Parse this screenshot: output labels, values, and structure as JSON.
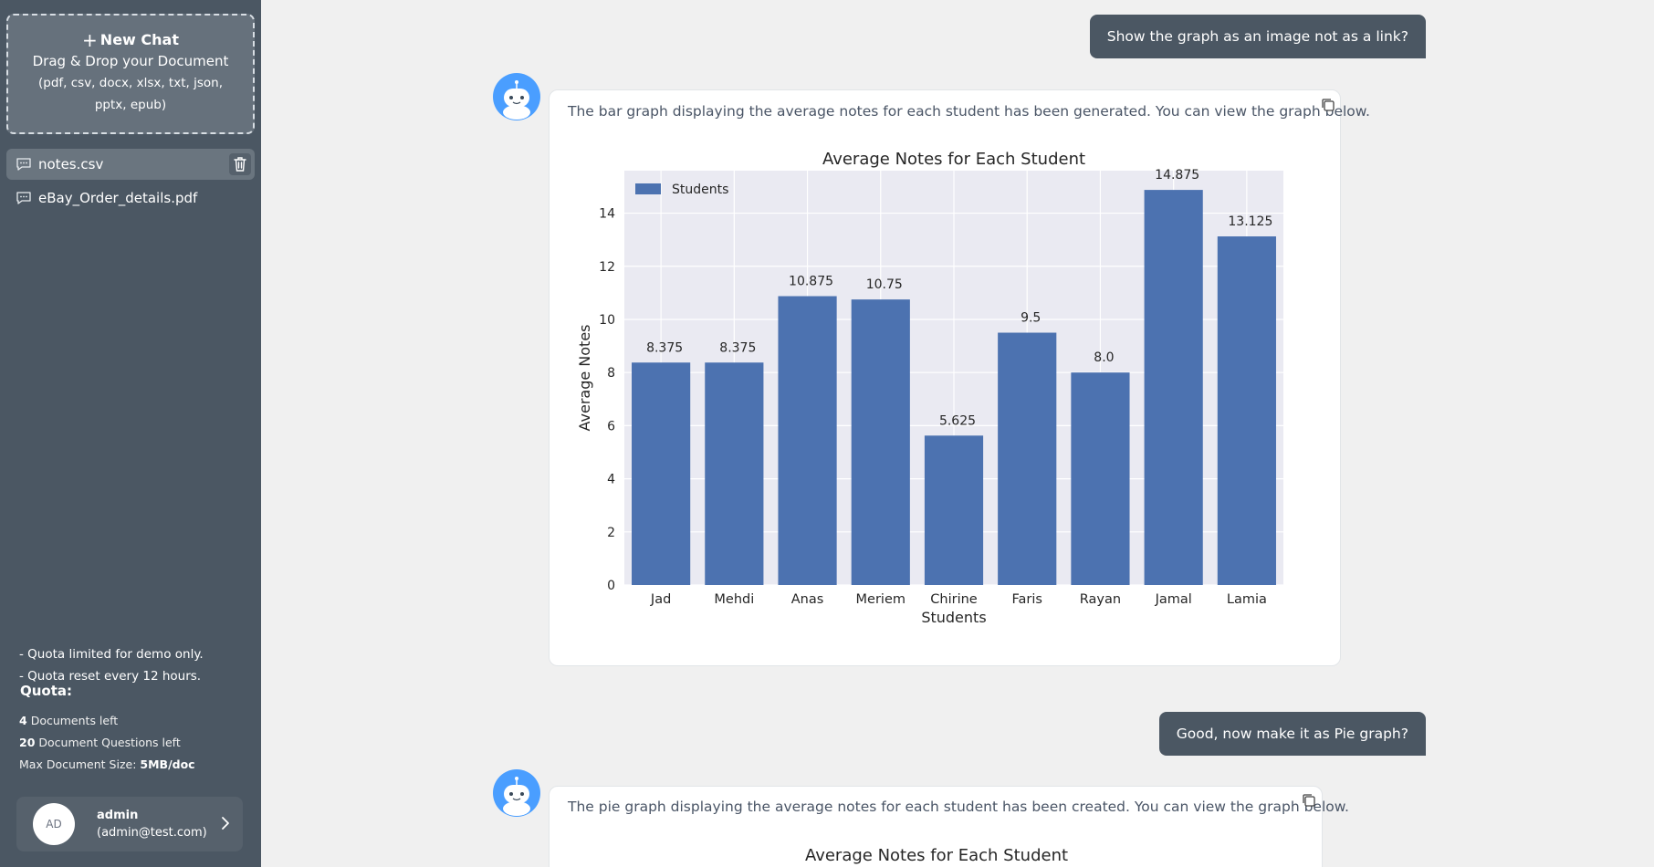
{
  "sidebar": {
    "new_chat_label": "New Chat",
    "drag_drop": "Drag & Drop your Document",
    "file_types": "(pdf, csv, docx, xlsx, txt, json, pptx, epub)",
    "documents": [
      {
        "name": "notes.csv",
        "active": true
      },
      {
        "name": "eBay_Order_details.pdf",
        "active": false
      }
    ],
    "quota_note_1": "- Quota limited for demo only.",
    "quota_note_2": "- Quota reset every 12 hours.",
    "quota_title": "Quota:",
    "documents_left_count": "4",
    "documents_left_label": "Documents left",
    "questions_left_count": "20",
    "questions_left_label": "Document Questions left",
    "max_size_label": "Max Document Size:",
    "max_size_value": "5MB/doc",
    "user": {
      "initials": "AD",
      "name": "admin",
      "email": "(admin@test.com)"
    }
  },
  "chat": {
    "messages": [
      {
        "role": "user",
        "text": "Show the graph as an image not as a link?"
      },
      {
        "role": "assistant",
        "text": "The bar graph displaying the average notes for each student has been generated. You can view the graph below."
      },
      {
        "role": "user",
        "text": "Good, now make it as Pie graph?"
      },
      {
        "role": "assistant",
        "text": "The pie graph displaying the average notes for each student has been created. You can view the graph below."
      }
    ]
  },
  "chart_data": [
    {
      "type": "bar",
      "title": "Average Notes for Each Student",
      "xlabel": "Students",
      "ylabel": "Average Notes",
      "legend": [
        "Students"
      ],
      "legend_position": "top-left",
      "categories": [
        "Jad",
        "Mehdi",
        "Anas",
        "Meriem",
        "Chirine",
        "Faris",
        "Rayan",
        "Jamal",
        "Lamia"
      ],
      "values": [
        8.375,
        8.375,
        10.875,
        10.75,
        5.625,
        9.5,
        8.0,
        14.875,
        13.125
      ],
      "value_labels": [
        "8.375",
        "8.375",
        "10.875",
        "10.75",
        "5.625",
        "9.5",
        "8.0",
        "14.875",
        "13.125"
      ],
      "yticks": [
        "0",
        "2",
        "4",
        "6",
        "8",
        "10",
        "12",
        "14"
      ],
      "ylim": [
        0,
        15.6
      ],
      "grid": true,
      "bar_color": "#4c72b0",
      "plot_background": "#eaeaf2"
    },
    {
      "type": "pie",
      "title": "Average Notes for Each Student"
    }
  ]
}
